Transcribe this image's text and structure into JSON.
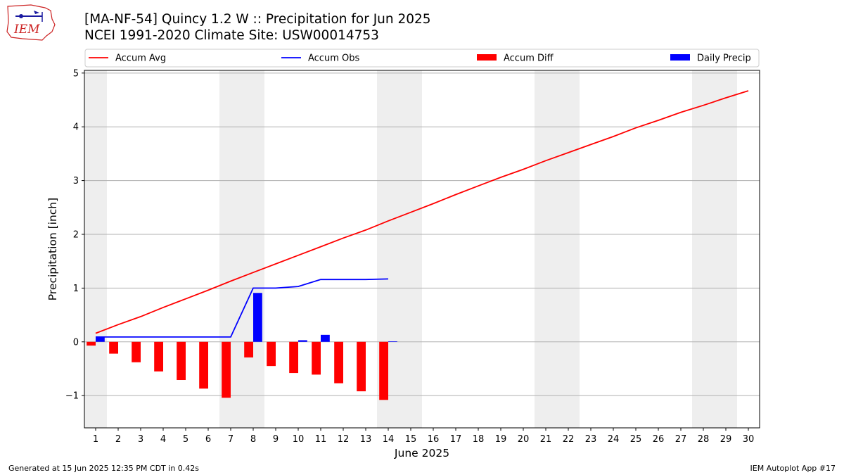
{
  "header": {
    "title": "[MA-NF-54] Quincy 1.2 W :: Precipitation for Jun 2025",
    "subtitle": "NCEI 1991-2020 Climate Site: USW00014753"
  },
  "logo": {
    "text": "IEM",
    "icon": "iem-logo-icon"
  },
  "footer": {
    "left": "Generated at 15 Jun 2025 12:35 PM CDT in 0.42s",
    "right": "IEM Autoplot App #17"
  },
  "colors": {
    "avg": "#ff0000",
    "obs": "#0000ff",
    "diff": "#ff0000",
    "daily": "#0000ff",
    "weekend": "#eeeeee",
    "grid": "#b0b0b0"
  },
  "chart_data": {
    "type": "bar",
    "xlabel": "June 2025",
    "ylabel": "Precipitation [inch]",
    "xlim": [
      0.5,
      30.5
    ],
    "ylim": [
      -1.6,
      5.05
    ],
    "yticks": [
      -1,
      0,
      1,
      2,
      3,
      4,
      5
    ],
    "xticks": [
      1,
      2,
      3,
      4,
      5,
      6,
      7,
      8,
      9,
      10,
      11,
      12,
      13,
      14,
      15,
      16,
      17,
      18,
      19,
      20,
      21,
      22,
      23,
      24,
      25,
      26,
      27,
      28,
      29,
      30
    ],
    "grid": "horizontal",
    "legend_placement": "top",
    "shaded_day_ranges": [
      [
        0.5,
        1.5
      ],
      [
        6.5,
        8.5
      ],
      [
        13.5,
        15.5
      ],
      [
        20.5,
        22.5
      ],
      [
        27.5,
        29.5
      ]
    ],
    "series": [
      {
        "name": "Accum Avg",
        "kind": "line",
        "x": [
          1,
          2,
          3,
          4,
          5,
          6,
          7,
          8,
          9,
          10,
          11,
          12,
          13,
          14,
          15,
          16,
          17,
          18,
          19,
          20,
          21,
          22,
          23,
          24,
          25,
          26,
          27,
          28,
          29,
          30
        ],
        "values": [
          0.16,
          0.32,
          0.47,
          0.64,
          0.8,
          0.96,
          1.13,
          1.29,
          1.45,
          1.61,
          1.77,
          1.93,
          2.08,
          2.25,
          2.41,
          2.57,
          2.74,
          2.9,
          3.06,
          3.21,
          3.37,
          3.52,
          3.67,
          3.82,
          3.98,
          4.12,
          4.27,
          4.4,
          4.54,
          4.67
        ]
      },
      {
        "name": "Accum Obs",
        "kind": "line",
        "x": [
          1,
          2,
          3,
          4,
          5,
          6,
          7,
          8,
          9,
          10,
          11,
          12,
          13,
          14
        ],
        "values": [
          0.09,
          0.09,
          0.09,
          0.09,
          0.09,
          0.09,
          0.09,
          1.0,
          1.0,
          1.03,
          1.16,
          1.16,
          1.16,
          1.17
        ]
      },
      {
        "name": "Accum Diff",
        "kind": "bar",
        "offset": -0.2,
        "x": [
          1,
          2,
          3,
          4,
          5,
          6,
          7,
          8,
          9,
          10,
          11,
          12,
          13,
          14
        ],
        "values": [
          -0.07,
          -0.22,
          -0.38,
          -0.55,
          -0.71,
          -0.87,
          -1.04,
          -0.29,
          -0.45,
          -0.58,
          -0.61,
          -0.77,
          -0.92,
          -1.08
        ]
      },
      {
        "name": "Daily Precip",
        "kind": "bar",
        "offset": 0.2,
        "x": [
          1,
          2,
          3,
          4,
          5,
          6,
          7,
          8,
          9,
          10,
          11,
          12,
          13,
          14
        ],
        "values": [
          0.09,
          0,
          0,
          0,
          0,
          0,
          0,
          0.91,
          0,
          0.03,
          0.13,
          0,
          0,
          0.01
        ]
      }
    ]
  }
}
